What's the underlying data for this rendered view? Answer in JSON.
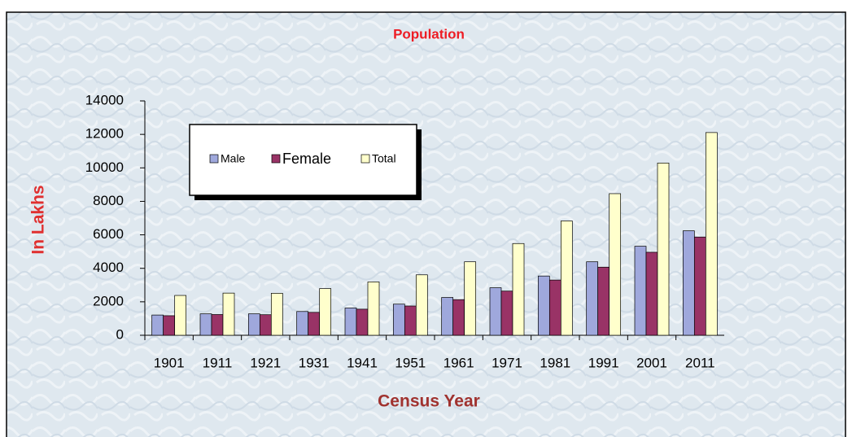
{
  "chart_data": {
    "type": "bar",
    "title": "Population",
    "x_label": "Census Year",
    "y_label": "In Lakhs",
    "categories": [
      "1901",
      "1911",
      "1921",
      "1931",
      "1941",
      "1951",
      "1961",
      "1971",
      "1981",
      "1991",
      "2001",
      "2011"
    ],
    "series": [
      {
        "name": "Male",
        "color": "#9fa8dc",
        "values": [
          1210,
          1280,
          1280,
          1420,
          1630,
          1860,
          2260,
          2840,
          3540,
          4390,
          5320,
          6240
        ]
      },
      {
        "name": "Female",
        "color": "#993366",
        "values": [
          1170,
          1240,
          1230,
          1370,
          1560,
          1750,
          2130,
          2640,
          3300,
          4070,
          4960,
          5870
        ]
      },
      {
        "name": "Total",
        "color": "#ffffcc",
        "values": [
          2380,
          2520,
          2510,
          2790,
          3190,
          3610,
          4390,
          5480,
          6830,
          8460,
          10290,
          12110
        ]
      }
    ],
    "ylim": [
      0,
      14000
    ],
    "yticks": [
      0,
      2000,
      4000,
      6000,
      8000,
      10000,
      12000,
      14000
    ],
    "legend": "upper left"
  }
}
